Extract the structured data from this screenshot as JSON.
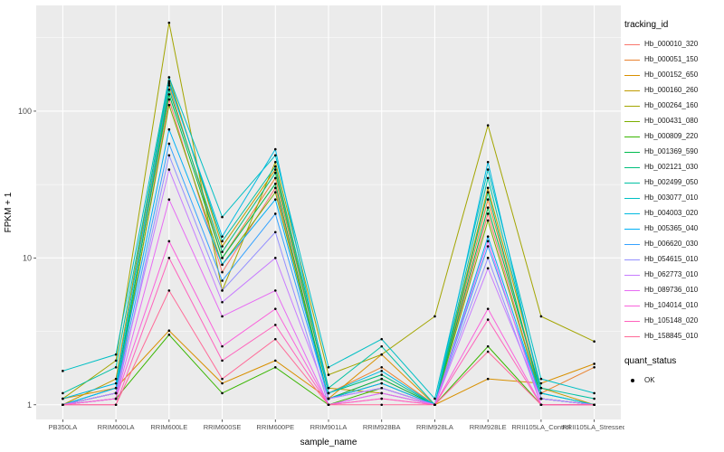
{
  "chart_data": {
    "type": "line",
    "title": "",
    "xlabel": "sample_name",
    "ylabel": "FPKM + 1",
    "y_scale": "log10",
    "y_ticks": [
      1,
      10,
      100
    ],
    "y_minor": [
      3.1623,
      31.623,
      316.23
    ],
    "ylim": [
      0.79,
      525
    ],
    "panel_bg": "#EBEBEB",
    "grid_color": "#FFFFFF",
    "tick_text_color": "#4D4D4D",
    "legend": {
      "title": "tracking_id",
      "position": "right"
    },
    "quant_legend": {
      "title": "quant_status",
      "items": [
        {
          "label": "OK",
          "marker": "point",
          "color": "#000000"
        }
      ]
    },
    "categories": [
      "PB350LA",
      "RRIM600LA",
      "RRIM600LE",
      "RRIM600SE",
      "RRIM600PE",
      "RRIM901LA",
      "RRIM928BA",
      "RRIM928LA",
      "RRIM928LE",
      "RRII105LA_Control",
      "RRII105LA_Stressed"
    ],
    "series": [
      {
        "name": "Hb_000010_320",
        "color": "#F8766D",
        "values": [
          1.0,
          1.1,
          120,
          8,
          30,
          1.1,
          1.5,
          1.0,
          20,
          1.1,
          1.0
        ]
      },
      {
        "name": "Hb_000051_150",
        "color": "#EA8331",
        "values": [
          1.0,
          1.2,
          150,
          10,
          35,
          1.2,
          1.8,
          1.0,
          25,
          1.2,
          1.8
        ]
      },
      {
        "name": "Hb_000152_650",
        "color": "#D89000",
        "values": [
          1.1,
          1.3,
          3.2,
          1.4,
          2.0,
          1.1,
          2.2,
          1.0,
          1.5,
          1.4,
          1.9
        ]
      },
      {
        "name": "Hb_000160_260",
        "color": "#C09B00",
        "values": [
          1.0,
          1.5,
          170,
          12,
          40,
          1.3,
          1.2,
          1.0,
          30,
          1.3,
          1.0
        ]
      },
      {
        "name": "Hb_000264_160",
        "color": "#A3A500",
        "values": [
          1.1,
          2.0,
          400,
          6,
          45,
          1.6,
          2.2,
          4.0,
          80,
          4.0,
          2.7
        ]
      },
      {
        "name": "Hb_000431_080",
        "color": "#7CAE00",
        "values": [
          1.0,
          1.2,
          110,
          9,
          28,
          1.1,
          1.4,
          1.0,
          18,
          1.1,
          1.0
        ]
      },
      {
        "name": "Hb_000809_220",
        "color": "#39B600",
        "values": [
          1.0,
          1.1,
          3.0,
          1.2,
          1.8,
          1.0,
          1.3,
          1.0,
          2.5,
          1.0,
          1.0
        ]
      },
      {
        "name": "Hb_001369_590",
        "color": "#00BB4E",
        "values": [
          1.0,
          1.3,
          130,
          10,
          32,
          1.1,
          1.5,
          1.0,
          22,
          1.2,
          1.0
        ]
      },
      {
        "name": "Hb_002121_030",
        "color": "#00BF7D",
        "values": [
          1.0,
          1.2,
          140,
          11,
          38,
          1.2,
          1.6,
          1.0,
          28,
          1.1,
          1.0
        ]
      },
      {
        "name": "Hb_002499_050",
        "color": "#00C1A3",
        "values": [
          1.2,
          1.8,
          160,
          13,
          42,
          1.3,
          2.5,
          1.0,
          35,
          1.3,
          1.1
        ]
      },
      {
        "name": "Hb_003077_010",
        "color": "#00BFC4",
        "values": [
          1.7,
          2.2,
          170,
          19,
          50,
          1.8,
          2.8,
          1.1,
          40,
          1.5,
          1.2
        ]
      },
      {
        "name": "Hb_004003_020",
        "color": "#00BAE0",
        "values": [
          1.1,
          1.4,
          155,
          14,
          55,
          1.2,
          1.7,
          1.0,
          45,
          1.2,
          1.0
        ]
      },
      {
        "name": "Hb_005365_040",
        "color": "#00B0F6",
        "values": [
          1.0,
          1.3,
          75,
          9,
          25,
          1.1,
          1.4,
          1.0,
          14,
          1.1,
          1.0
        ]
      },
      {
        "name": "Hb_006620_030",
        "color": "#35A2FF",
        "values": [
          1.0,
          1.2,
          60,
          7,
          20,
          1.1,
          1.3,
          1.0,
          12,
          1.1,
          1.0
        ]
      },
      {
        "name": "Hb_054615_010",
        "color": "#9590FF",
        "values": [
          1.0,
          1.1,
          50,
          6,
          15,
          1.0,
          1.2,
          1.0,
          10,
          1.0,
          1.0
        ]
      },
      {
        "name": "Hb_062773_010",
        "color": "#C77CFF",
        "values": [
          1.0,
          1.2,
          40,
          5,
          10,
          1.1,
          1.3,
          1.0,
          8.5,
          1.1,
          1.0
        ]
      },
      {
        "name": "Hb_089736_010",
        "color": "#E76BF3",
        "values": [
          1.0,
          1.1,
          25,
          4,
          6,
          1.0,
          1.2,
          1.0,
          13,
          1.0,
          1.0
        ]
      },
      {
        "name": "Hb_104014_010",
        "color": "#FA62DB",
        "values": [
          1.0,
          1.1,
          13,
          2.5,
          4.5,
          1.0,
          1.1,
          1.0,
          4.5,
          1.0,
          1.0
        ]
      },
      {
        "name": "Hb_105148_020",
        "color": "#FF62BC",
        "values": [
          1.0,
          1.0,
          10,
          2.0,
          3.5,
          1.0,
          1.1,
          1.0,
          3.8,
          1.0,
          1.0
        ]
      },
      {
        "name": "Hb_158845_010",
        "color": "#FF6A98",
        "values": [
          1.0,
          1.0,
          6,
          1.5,
          2.8,
          1.0,
          1.0,
          1.0,
          2.3,
          1.0,
          1.0
        ]
      }
    ]
  }
}
